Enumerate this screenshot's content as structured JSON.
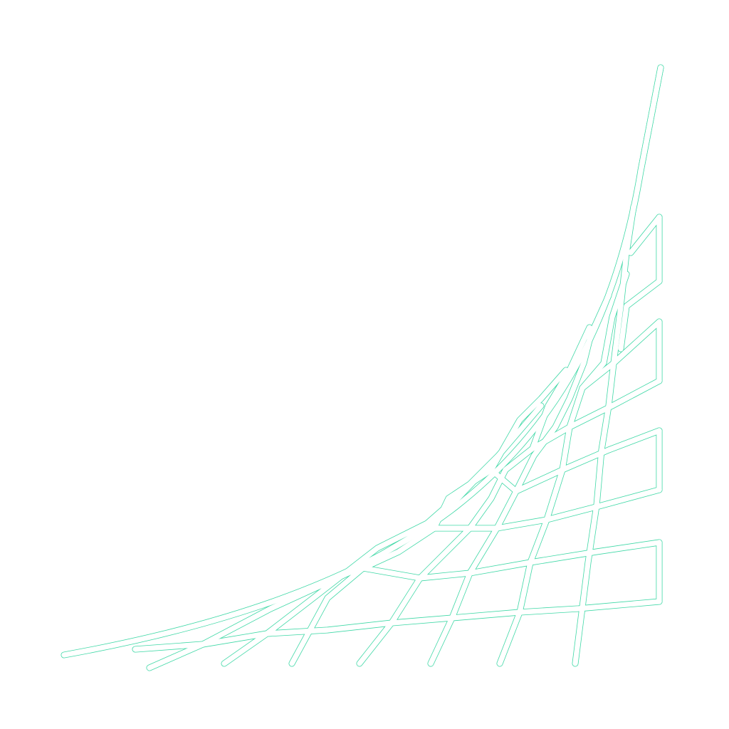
{
  "artwork": {
    "subject": "string-art-curve-grid",
    "outline_color": "#3fd8a6",
    "fill_color": "#ffffff",
    "background_color": "#ffffff",
    "style": "outlined-strokes"
  }
}
